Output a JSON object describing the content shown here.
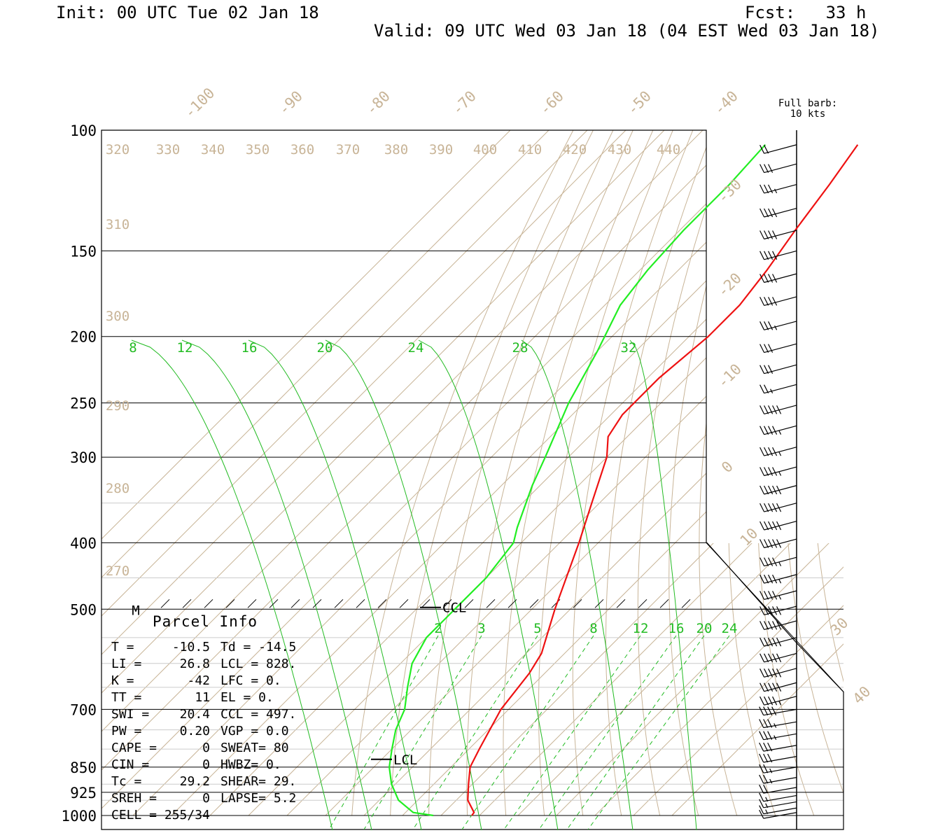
{
  "header": {
    "init": "Init: 00 UTC Tue 02 Jan 18",
    "fcst": "Fcst:   33 h",
    "valid": "Valid: 09 UTC Wed 03 Jan 18 (04 EST Wed 03 Jan 18)"
  },
  "barb_legend": [
    "Full barb:",
    "10 kts"
  ],
  "colors": {
    "temperature": "#ee1111",
    "dewpoint": "#22ee22",
    "background_lines": "#c8b497",
    "mixing_ratio": "#22bb22",
    "frame": "#000000"
  },
  "chart_data": {
    "type": "line",
    "subtype": "skew-T log-P sounding",
    "y_axis": {
      "label": "",
      "scale": "log",
      "ticks": [
        100,
        150,
        200,
        250,
        300,
        400,
        500,
        700,
        850,
        925,
        1000
      ]
    },
    "extra_pressure_lines": [
      350,
      450,
      550,
      600,
      650,
      750,
      800,
      900,
      950
    ],
    "isotherm_labels": [
      -100,
      -90,
      -80,
      -70,
      -60,
      -50,
      -40,
      -30,
      -20,
      -10,
      0,
      10,
      30,
      40
    ],
    "theta_labels_top": [
      320,
      330,
      340,
      350,
      360,
      370,
      380,
      390,
      400,
      410,
      420,
      430,
      440
    ],
    "theta_labels_left": [
      310,
      300,
      290,
      280,
      270
    ],
    "mixing_ratio_labels_upper": [
      8,
      12,
      16,
      20,
      24,
      28,
      32
    ],
    "mixing_ratio_labels_lower": [
      2,
      3,
      5,
      8,
      12,
      16,
      20,
      24
    ],
    "series": [
      {
        "name": "temperature",
        "points": [
          {
            "p": 1000,
            "t": 8.0
          },
          {
            "p": 990,
            "t": 7.8
          },
          {
            "p": 950,
            "t": 3.0
          },
          {
            "p": 900,
            "t": -1.0
          },
          {
            "p": 850,
            "t": -5.0
          },
          {
            "p": 800,
            "t": -7.3
          },
          {
            "p": 700,
            "t": -12.0
          },
          {
            "p": 620,
            "t": -14.0
          },
          {
            "p": 580,
            "t": -16.0
          },
          {
            "p": 500,
            "t": -24.0
          },
          {
            "p": 400,
            "t": -35.0
          },
          {
            "p": 350,
            "t": -42.0
          },
          {
            "p": 300,
            "t": -50.0
          },
          {
            "p": 280,
            "t": -55.0
          },
          {
            "p": 260,
            "t": -57.0
          },
          {
            "p": 230,
            "t": -57.0
          },
          {
            "p": 200,
            "t": -55.0
          },
          {
            "p": 180,
            "t": -55.0
          },
          {
            "p": 160,
            "t": -57.0
          },
          {
            "p": 140,
            "t": -60.0
          },
          {
            "p": 120,
            "t": -63.0
          },
          {
            "p": 105,
            "t": -66.0
          }
        ]
      },
      {
        "name": "dewpoint",
        "points": [
          {
            "p": 1000,
            "t": -2.0
          },
          {
            "p": 990,
            "t": -8.0
          },
          {
            "p": 950,
            "t": -15.0
          },
          {
            "p": 900,
            "t": -21.0
          },
          {
            "p": 850,
            "t": -26.0
          },
          {
            "p": 800,
            "t": -30.0
          },
          {
            "p": 750,
            "t": -34.0
          },
          {
            "p": 700,
            "t": -37.0
          },
          {
            "p": 650,
            "t": -42.0
          },
          {
            "p": 600,
            "t": -47.0
          },
          {
            "p": 550,
            "t": -50.0
          },
          {
            "p": 500,
            "t": -50.0
          },
          {
            "p": 450,
            "t": -50.0
          },
          {
            "p": 400,
            "t": -52.0
          },
          {
            "p": 380,
            "t": -55.0
          },
          {
            "p": 330,
            "t": -62.0
          },
          {
            "p": 300,
            "t": -66.0
          },
          {
            "p": 250,
            "t": -74.0
          },
          {
            "p": 210,
            "t": -80.0
          },
          {
            "p": 180,
            "t": -86.0
          },
          {
            "p": 160,
            "t": -88.0
          },
          {
            "p": 140,
            "t": -89.0
          },
          {
            "p": 120,
            "t": -89.0
          },
          {
            "p": 105,
            "t": -90.0
          }
        ]
      }
    ],
    "level_markers": [
      {
        "label": "CCL",
        "p": 497
      },
      {
        "label": "LCL",
        "p": 828
      },
      {
        "label": "M",
        "p": 500
      }
    ],
    "wind_barbs": {
      "legend": "Full barb: 10 kts",
      "levels": [
        {
          "p": 105,
          "dir": 255,
          "spd": 20
        },
        {
          "p": 112,
          "dir": 255,
          "spd": 30
        },
        {
          "p": 120,
          "dir": 255,
          "spd": 35
        },
        {
          "p": 130,
          "dir": 255,
          "spd": 40
        },
        {
          "p": 140,
          "dir": 255,
          "spd": 40
        },
        {
          "p": 150,
          "dir": 255,
          "spd": 40
        },
        {
          "p": 162,
          "dir": 255,
          "spd": 40
        },
        {
          "p": 175,
          "dir": 255,
          "spd": 40
        },
        {
          "p": 190,
          "dir": 255,
          "spd": 35
        },
        {
          "p": 205,
          "dir": 255,
          "spd": 30
        },
        {
          "p": 220,
          "dir": 255,
          "spd": 30
        },
        {
          "p": 235,
          "dir": 255,
          "spd": 25
        },
        {
          "p": 252,
          "dir": 255,
          "spd": 50
        },
        {
          "p": 270,
          "dir": 255,
          "spd": 45
        },
        {
          "p": 290,
          "dir": 255,
          "spd": 45
        },
        {
          "p": 310,
          "dir": 255,
          "spd": 45
        },
        {
          "p": 330,
          "dir": 255,
          "spd": 50
        },
        {
          "p": 350,
          "dir": 255,
          "spd": 50
        },
        {
          "p": 372,
          "dir": 255,
          "spd": 50
        },
        {
          "p": 395,
          "dir": 255,
          "spd": 50
        },
        {
          "p": 420,
          "dir": 255,
          "spd": 45
        },
        {
          "p": 445,
          "dir": 255,
          "spd": 45
        },
        {
          "p": 470,
          "dir": 255,
          "spd": 45
        },
        {
          "p": 495,
          "dir": 255,
          "spd": 50
        },
        {
          "p": 520,
          "dir": 255,
          "spd": 50
        },
        {
          "p": 550,
          "dir": 255,
          "spd": 50
        },
        {
          "p": 580,
          "dir": 255,
          "spd": 50
        },
        {
          "p": 610,
          "dir": 255,
          "spd": 50
        },
        {
          "p": 640,
          "dir": 255,
          "spd": 50
        },
        {
          "p": 670,
          "dir": 255,
          "spd": 45
        },
        {
          "p": 700,
          "dir": 260,
          "spd": 40
        },
        {
          "p": 730,
          "dir": 260,
          "spd": 35
        },
        {
          "p": 760,
          "dir": 260,
          "spd": 35
        },
        {
          "p": 790,
          "dir": 260,
          "spd": 30
        },
        {
          "p": 820,
          "dir": 260,
          "spd": 30
        },
        {
          "p": 850,
          "dir": 260,
          "spd": 25
        },
        {
          "p": 880,
          "dir": 260,
          "spd": 25
        },
        {
          "p": 910,
          "dir": 260,
          "spd": 20
        },
        {
          "p": 935,
          "dir": 260,
          "spd": 15
        },
        {
          "p": 955,
          "dir": 260,
          "spd": 15
        },
        {
          "p": 975,
          "dir": 260,
          "spd": 15
        },
        {
          "p": 990,
          "dir": 260,
          "spd": 10
        }
      ]
    }
  },
  "parcel_info": {
    "title": "Parcel Info",
    "rows": [
      [
        "T  =",
        "-10.5",
        "Td = -14.5"
      ],
      [
        "LI =",
        "26.8",
        "LCL =  828."
      ],
      [
        "K  =",
        "-42",
        "LFC =    0."
      ],
      [
        "TT =",
        "11",
        "EL  =    0."
      ],
      [
        "SWI =",
        "20.4",
        "CCL =  497."
      ],
      [
        "PW =",
        "0.20",
        "VGP =   0.0"
      ],
      [
        "CAPE =",
        "0",
        "SWEAT=   80"
      ],
      [
        "CIN =",
        "0",
        "HWBZ=    0."
      ],
      [
        "Tc =",
        "29.2",
        "SHEAR=  29."
      ],
      [
        "SREH =",
        "0",
        "LAPSE=  5.2"
      ],
      [
        "CELL = 255/34",
        "",
        ""
      ]
    ]
  }
}
